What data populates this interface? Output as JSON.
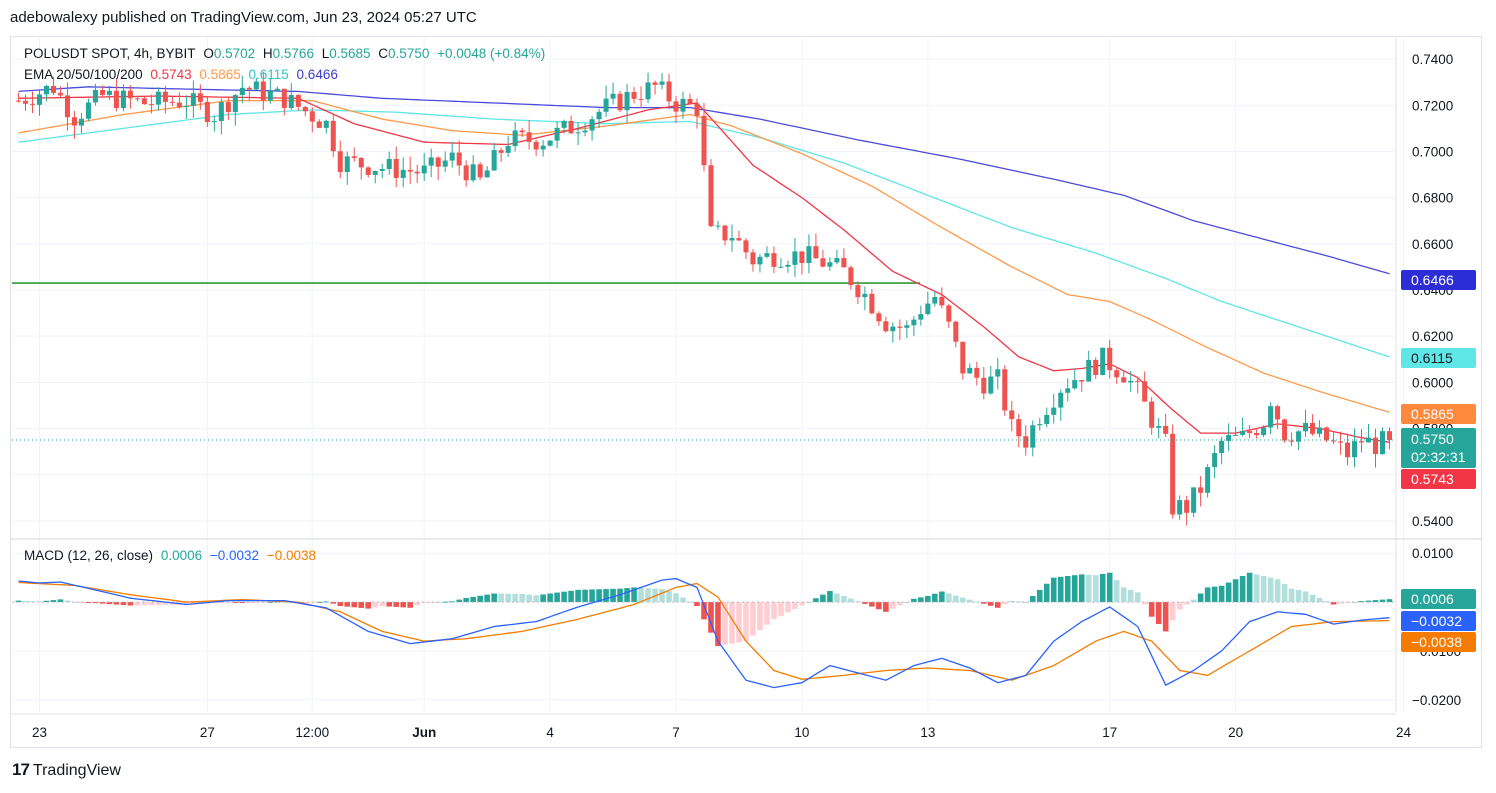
{
  "header": {
    "publisher_line": "adebowalexy published on TradingView.com, Jun 23, 2024 05:27 UTC"
  },
  "legend_main": {
    "symbol": "POLUSDT SPOT, 4h, BYBIT",
    "o_label": "O",
    "o_value": "0.5702",
    "h_label": "H",
    "h_value": "0.5766",
    "l_label": "L",
    "l_value": "0.5685",
    "c_label": "C",
    "c_value": "0.5750",
    "change": "+0.0048 (+0.84%)"
  },
  "legend_ema": {
    "label": "EMA 20/50/100/200",
    "ema20": "0.5743",
    "ema50": "0.5865",
    "ema100": "0.6115",
    "ema200": "0.6466"
  },
  "legend_macd": {
    "label": "MACD (12, 26, close)",
    "hist": "0.0006",
    "macd": "−0.0032",
    "signal": "−0.0038"
  },
  "badges": {
    "ema200": "0.6466",
    "ema100": "0.6115",
    "ema50": "0.5865",
    "price": "0.5750",
    "countdown": "02:32:31",
    "ema20": "0.5743",
    "macd_hist": "0.0006",
    "macd_line": "−0.0032",
    "macd_signal": "−0.0038"
  },
  "footer": {
    "logo_mark": "17",
    "brand": "TradingView"
  },
  "colors": {
    "up": "#26a69a",
    "down": "#ef5350",
    "ema20": "#f23645",
    "ema50": "#ff9a4d",
    "ema100": "#5fe6e6",
    "ema200": "#4b4bdc",
    "hline": "#2e9b3a",
    "macd": "#2962ff",
    "signal": "#f57c00",
    "hist_up": "#26a69a",
    "hist_up_fading": "#b2dfdb",
    "hist_down": "#ef5350",
    "hist_down_fading": "#ffcdd2"
  },
  "chart_data": {
    "type": "line",
    "timeframe": "4h",
    "price_axis": {
      "ticks": [
        "0.7400",
        "0.7200",
        "0.7000",
        "0.6800",
        "0.6600",
        "0.6400",
        "0.6200",
        "0.6000",
        "0.5800",
        "0.5600",
        "0.5400"
      ],
      "ylim": [
        0.533,
        0.75
      ]
    },
    "macd_axis": {
      "ticks": [
        "0.0100",
        "0.0000",
        "−0.0100",
        "−0.0200"
      ],
      "ylim": [
        -0.0225,
        0.0125
      ]
    },
    "x_ticks": [
      "23",
      "27",
      "12:00",
      "Jun",
      "4",
      "7",
      "10",
      "13",
      "17",
      "20",
      "24"
    ],
    "horizontal_level": 0.643,
    "last_close": 0.575,
    "anchors": [
      {
        "label": "23",
        "candle": 3
      },
      {
        "label": "27",
        "candle": 27
      },
      {
        "label": "12:00",
        "candle": 42
      },
      {
        "label": "Jun",
        "candle": 58
      },
      {
        "label": "4",
        "candle": 76
      },
      {
        "label": "7",
        "candle": 94
      },
      {
        "label": "10",
        "candle": 112
      },
      {
        "label": "13",
        "candle": 130
      },
      {
        "label": "17",
        "candle": 156
      },
      {
        "label": "20",
        "candle": 174
      },
      {
        "label": "24",
        "candle": 198
      }
    ],
    "close_path": [
      [
        0,
        0.722
      ],
      [
        5,
        0.728
      ],
      [
        8,
        0.715
      ],
      [
        12,
        0.724
      ],
      [
        18,
        0.721
      ],
      [
        24,
        0.722
      ],
      [
        28,
        0.716
      ],
      [
        32,
        0.728
      ],
      [
        38,
        0.723
      ],
      [
        44,
        0.712
      ],
      [
        46,
        0.696
      ],
      [
        52,
        0.693
      ],
      [
        58,
        0.691
      ],
      [
        62,
        0.697
      ],
      [
        66,
        0.687
      ],
      [
        70,
        0.705
      ],
      [
        75,
        0.705
      ],
      [
        80,
        0.712
      ],
      [
        84,
        0.719
      ],
      [
        88,
        0.725
      ],
      [
        91,
        0.728
      ],
      [
        94,
        0.721
      ],
      [
        97,
        0.719
      ],
      [
        99,
        0.664
      ],
      [
        102,
        0.664
      ],
      [
        105,
        0.653
      ],
      [
        108,
        0.655
      ],
      [
        112,
        0.655
      ],
      [
        115,
        0.652
      ],
      [
        118,
        0.648
      ],
      [
        121,
        0.638
      ],
      [
        124,
        0.626
      ],
      [
        127,
        0.623
      ],
      [
        129,
        0.632
      ],
      [
        131,
        0.637
      ],
      [
        133,
        0.624
      ],
      [
        135,
        0.606
      ],
      [
        138,
        0.6
      ],
      [
        140,
        0.601
      ],
      [
        142,
        0.58
      ],
      [
        144,
        0.575
      ],
      [
        146,
        0.586
      ],
      [
        149,
        0.598
      ],
      [
        152,
        0.604
      ],
      [
        155,
        0.61
      ],
      [
        158,
        0.604
      ],
      [
        160,
        0.596
      ],
      [
        162,
        0.584
      ],
      [
        164,
        0.573
      ],
      [
        165,
        0.546
      ],
      [
        167,
        0.546
      ],
      [
        169,
        0.554
      ],
      [
        172,
        0.574
      ],
      [
        175,
        0.576
      ],
      [
        178,
        0.583
      ],
      [
        179,
        0.593
      ],
      [
        181,
        0.578
      ],
      [
        184,
        0.579
      ],
      [
        187,
        0.575
      ],
      [
        190,
        0.569
      ],
      [
        192,
        0.575
      ],
      [
        194,
        0.573
      ],
      [
        196,
        0.575
      ]
    ],
    "ema20_path": [
      [
        0,
        0.723
      ],
      [
        20,
        0.724
      ],
      [
        40,
        0.723
      ],
      [
        48,
        0.712
      ],
      [
        58,
        0.704
      ],
      [
        70,
        0.703
      ],
      [
        80,
        0.71
      ],
      [
        90,
        0.718
      ],
      [
        97,
        0.721
      ],
      [
        100,
        0.711
      ],
      [
        105,
        0.694
      ],
      [
        112,
        0.68
      ],
      [
        118,
        0.666
      ],
      [
        125,
        0.648
      ],
      [
        132,
        0.638
      ],
      [
        138,
        0.624
      ],
      [
        143,
        0.611
      ],
      [
        148,
        0.605
      ],
      [
        152,
        0.606
      ],
      [
        156,
        0.608
      ],
      [
        160,
        0.602
      ],
      [
        165,
        0.588
      ],
      [
        169,
        0.578
      ],
      [
        174,
        0.578
      ],
      [
        180,
        0.582
      ],
      [
        186,
        0.58
      ],
      [
        192,
        0.576
      ],
      [
        196,
        0.574
      ]
    ],
    "ema50_path": [
      [
        0,
        0.708
      ],
      [
        15,
        0.716
      ],
      [
        30,
        0.722
      ],
      [
        42,
        0.722
      ],
      [
        52,
        0.714
      ],
      [
        62,
        0.709
      ],
      [
        72,
        0.707
      ],
      [
        84,
        0.711
      ],
      [
        96,
        0.716
      ],
      [
        102,
        0.711
      ],
      [
        112,
        0.699
      ],
      [
        122,
        0.685
      ],
      [
        132,
        0.667
      ],
      [
        142,
        0.65
      ],
      [
        150,
        0.638
      ],
      [
        156,
        0.635
      ],
      [
        162,
        0.627
      ],
      [
        170,
        0.615
      ],
      [
        178,
        0.604
      ],
      [
        186,
        0.596
      ],
      [
        196,
        0.587
      ]
    ],
    "ema100_path": [
      [
        0,
        0.704
      ],
      [
        15,
        0.71
      ],
      [
        30,
        0.716
      ],
      [
        42,
        0.718
      ],
      [
        54,
        0.717
      ],
      [
        68,
        0.714
      ],
      [
        84,
        0.712
      ],
      [
        96,
        0.713
      ],
      [
        106,
        0.706
      ],
      [
        118,
        0.695
      ],
      [
        130,
        0.681
      ],
      [
        142,
        0.667
      ],
      [
        154,
        0.656
      ],
      [
        164,
        0.645
      ],
      [
        172,
        0.635
      ],
      [
        180,
        0.627
      ],
      [
        188,
        0.619
      ],
      [
        196,
        0.611
      ]
    ],
    "ema200_path": [
      [
        0,
        0.726
      ],
      [
        10,
        0.728
      ],
      [
        24,
        0.727
      ],
      [
        40,
        0.726
      ],
      [
        52,
        0.723
      ],
      [
        68,
        0.721
      ],
      [
        84,
        0.719
      ],
      [
        96,
        0.719
      ],
      [
        106,
        0.714
      ],
      [
        120,
        0.705
      ],
      [
        134,
        0.697
      ],
      [
        148,
        0.688
      ],
      [
        158,
        0.681
      ],
      [
        168,
        0.67
      ],
      [
        178,
        0.662
      ],
      [
        188,
        0.654
      ],
      [
        196,
        0.647
      ]
    ],
    "macd_path": [
      [
        0,
        0.0043
      ],
      [
        3,
        0.0039
      ],
      [
        6,
        0.0041
      ],
      [
        10,
        0.0028
      ],
      [
        16,
        0.0008
      ],
      [
        24,
        -0.0005
      ],
      [
        30,
        0.0003
      ],
      [
        38,
        0.0003
      ],
      [
        44,
        -0.0012
      ],
      [
        50,
        -0.006
      ],
      [
        56,
        -0.0085
      ],
      [
        62,
        -0.0075
      ],
      [
        68,
        -0.005
      ],
      [
        74,
        -0.004
      ],
      [
        80,
        -0.001
      ],
      [
        86,
        0.0015
      ],
      [
        92,
        0.0045
      ],
      [
        94,
        0.0048
      ],
      [
        97,
        0.003
      ],
      [
        100,
        -0.008
      ],
      [
        104,
        -0.016
      ],
      [
        108,
        -0.0175
      ],
      [
        112,
        -0.0165
      ],
      [
        116,
        -0.013
      ],
      [
        120,
        -0.0145
      ],
      [
        124,
        -0.016
      ],
      [
        128,
        -0.013
      ],
      [
        132,
        -0.0115
      ],
      [
        136,
        -0.0135
      ],
      [
        140,
        -0.0165
      ],
      [
        144,
        -0.015
      ],
      [
        148,
        -0.008
      ],
      [
        152,
        -0.004
      ],
      [
        156,
        -0.001
      ],
      [
        160,
        -0.005
      ],
      [
        164,
        -0.017
      ],
      [
        168,
        -0.014
      ],
      [
        172,
        -0.01
      ],
      [
        176,
        -0.004
      ],
      [
        180,
        -0.002
      ],
      [
        184,
        -0.0025
      ],
      [
        188,
        -0.0045
      ],
      [
        192,
        -0.0037
      ],
      [
        196,
        -0.0032
      ]
    ],
    "signal_path": [
      [
        0,
        0.004
      ],
      [
        8,
        0.0034
      ],
      [
        16,
        0.0015
      ],
      [
        24,
        0.0
      ],
      [
        32,
        0.0005
      ],
      [
        40,
        0.0
      ],
      [
        46,
        -0.002
      ],
      [
        52,
        -0.006
      ],
      [
        58,
        -0.008
      ],
      [
        64,
        -0.0075
      ],
      [
        72,
        -0.006
      ],
      [
        80,
        -0.0035
      ],
      [
        88,
        -0.0005
      ],
      [
        94,
        0.003
      ],
      [
        97,
        0.0038
      ],
      [
        100,
        0.001
      ],
      [
        104,
        -0.008
      ],
      [
        108,
        -0.014
      ],
      [
        112,
        -0.0158
      ],
      [
        118,
        -0.015
      ],
      [
        124,
        -0.014
      ],
      [
        130,
        -0.0135
      ],
      [
        136,
        -0.014
      ],
      [
        142,
        -0.016
      ],
      [
        148,
        -0.013
      ],
      [
        154,
        -0.008
      ],
      [
        158,
        -0.006
      ],
      [
        162,
        -0.008
      ],
      [
        166,
        -0.014
      ],
      [
        170,
        -0.015
      ],
      [
        176,
        -0.01
      ],
      [
        182,
        -0.005
      ],
      [
        188,
        -0.004
      ],
      [
        196,
        -0.0038
      ]
    ],
    "hist_up_ranges": [
      [
        26,
        31
      ],
      [
        64,
        88
      ],
      [
        121,
        124
      ],
      [
        132,
        137
      ],
      [
        151,
        161
      ],
      [
        171,
        184
      ],
      [
        194,
        196
      ]
    ],
    "hist_down_ranges": [
      [
        0,
        25
      ],
      [
        32,
        63
      ],
      [
        89,
        120
      ],
      [
        125,
        131
      ],
      [
        138,
        150
      ],
      [
        162,
        170
      ],
      [
        185,
        193
      ]
    ]
  }
}
